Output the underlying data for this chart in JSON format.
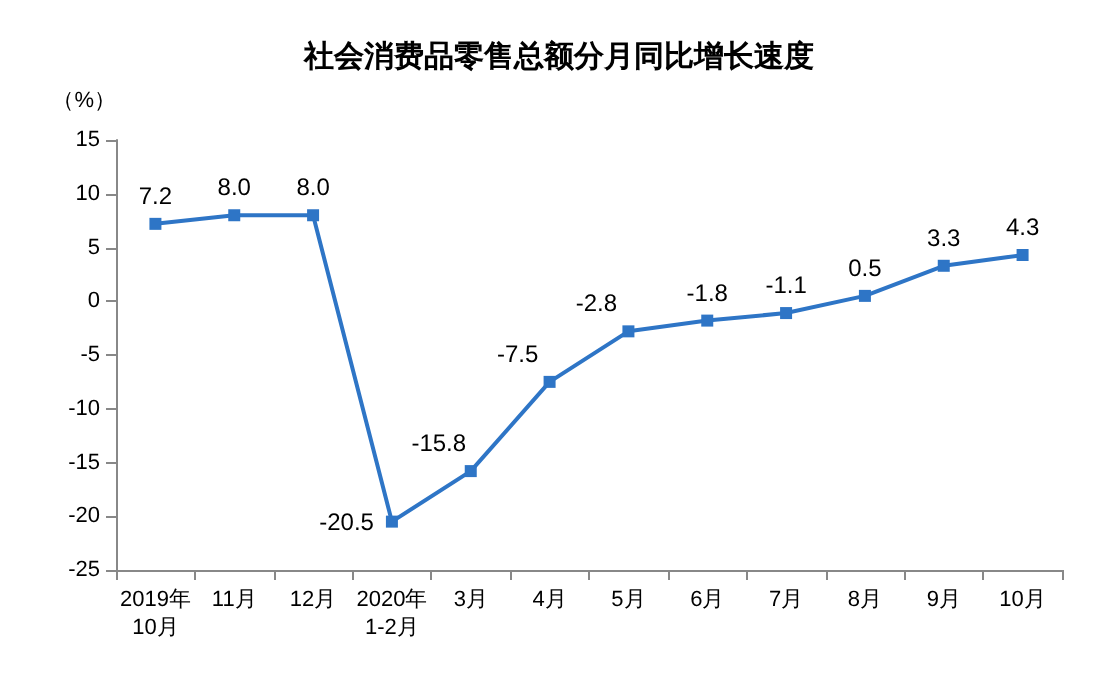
{
  "chart_data": {
    "type": "line",
    "title": "社会消费品零售总额分月同比增长速度",
    "ylabel": "（%）",
    "categories": [
      "2019年\n10月",
      "11月",
      "12月",
      "2020年\n1-2月",
      "3月",
      "4月",
      "5月",
      "6月",
      "7月",
      "8月",
      "9月",
      "10月"
    ],
    "values": [
      7.2,
      8.0,
      8.0,
      -20.5,
      -15.8,
      -7.5,
      -2.8,
      -1.8,
      -1.1,
      0.5,
      3.3,
      4.3
    ],
    "value_labels": [
      "7.2",
      "8.0",
      "8.0",
      "-20.5",
      "-15.8",
      "-7.5",
      "-2.8",
      "-1.8",
      "-1.1",
      "0.5",
      "3.3",
      "4.3"
    ],
    "color": "#2e75c6",
    "ylim": [
      -25,
      15
    ],
    "yticks": [
      -25,
      -20,
      -15,
      -10,
      -5,
      0,
      5,
      10,
      15
    ],
    "grid": false,
    "marker": "square",
    "line_style": "solid"
  }
}
